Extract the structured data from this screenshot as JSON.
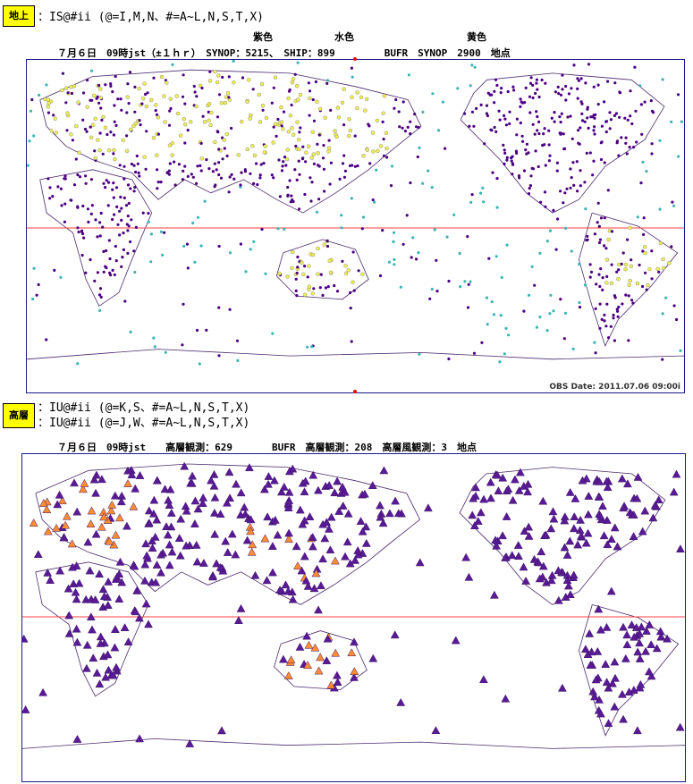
{
  "surface": {
    "badge": "地上",
    "line1": "：IS@#ii (@=I,M,N、#=A~L,N,S,T,X)",
    "colors": {
      "purple": "紫色",
      "cyan": "水色",
      "yellow": "黄色"
    },
    "info": "７月６日　09時jst（±１ｈｒ）　SYNOP：5215、　SHIP：899　　　　　BUFR　SYNOP　2900　地点",
    "stamp": "OBS Date: 2011.07.06 09:00i"
  },
  "upper": {
    "badge": "高層",
    "line1": "：IU@#ii (@=K,S、#=A~L,N,S,T,X)",
    "line2": "：IU@#ii (@=J,W、#=A~L,N,S,T,X)",
    "info": "７月６日　09時jst　　高層観測：629　　　　BUFR　高層観測：208　高層風観測：3　地点"
  },
  "colors": {
    "synop": "#4b0082",
    "ship": "#3cb4b4",
    "bufr": "#f0f050",
    "upper_tri": "#5a1a96",
    "bufr_tri": "#ff8c32",
    "equator": "#ff4040",
    "coast": "#4b2a6e"
  }
}
